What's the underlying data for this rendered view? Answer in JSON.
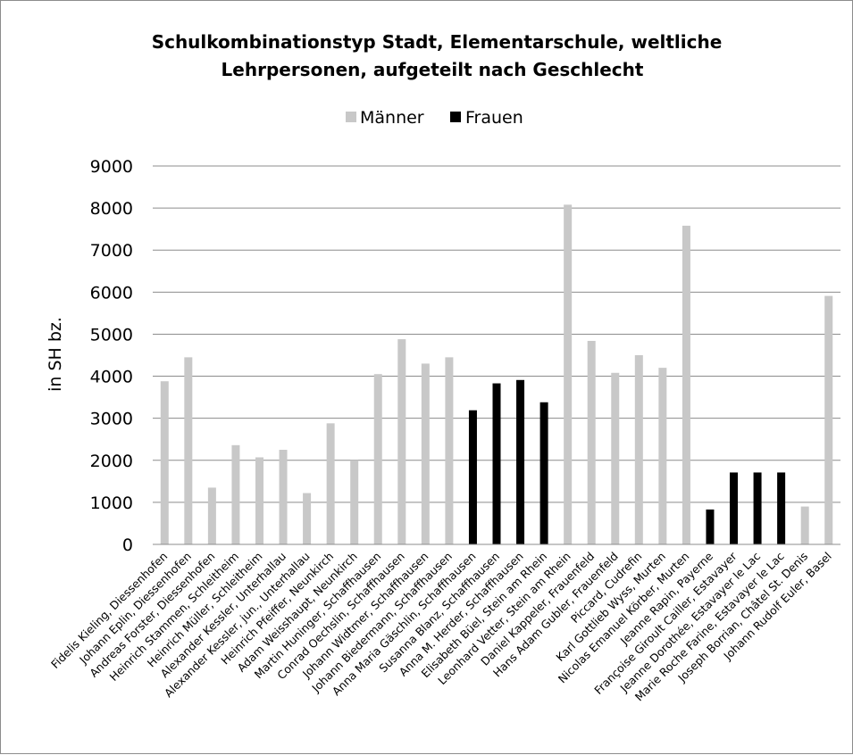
{
  "chart_data": {
    "type": "bar",
    "title_line1": "Schulkombinationstyp Stadt, Elementarschule, weltliche",
    "title_line2": "Lehrpersonen, aufgeteilt nach Geschlecht",
    "ylabel": "in SH bz.",
    "xlabel": "",
    "ylim": [
      0,
      9000
    ],
    "yticks": [
      "0",
      "1000",
      "2000",
      "3000",
      "4000",
      "5000",
      "6000",
      "7000",
      "8000",
      "9000"
    ],
    "grid": true,
    "legend_position": "top",
    "colors": {
      "Männer": "#c8c8c8",
      "Frauen": "#000000"
    },
    "legend": [
      "Männer",
      "Frauen"
    ],
    "categories": [
      "Fidelis Kieling, Diessenhofen",
      "Johann Eplin, Diessenhofen",
      "Andreas Forster, Diessenhofen",
      "Heinrich Stammen, Schleitheim",
      "Heinrich Müller, Schleitheim",
      "Alexander Kessler, Unterhallau",
      "Alexander Kessler, jun., Unterhallau",
      "Heinrich Pfeiffer, Neunkirch",
      "Adam Weisshaupt, Neunkirch",
      "Martin Huninger, Schaffhausen",
      "Conrad Oechslin, Schaffhausen",
      "Johann Widtmer, Schaffhausen",
      "Johann Biedermann, Schaffhausen",
      "Anna Maria Gäschlin, Schaffhausen",
      "Susanna Blanz, Schaffhausen",
      "Anna M. Herder, Schaffhausen",
      "Elisabeth Büel, Stein am Rhein",
      "Leonhard Vetter, Stein am Rhein",
      "Daniel Kappeler, Frauenfeld",
      "Hans Adam Gubler, Frauenfeld",
      "Piccard, Cudrefin",
      "Karl Gottlieb Wyss, Murten",
      "Nicolas Emanuel Körber, Murten",
      "Jeanne Rapin, Payerne",
      "Françoise Giroult Cailler, Estavayer",
      "Jeanne Dorothée, Estavayer le Lac",
      "Marie Roche Farine, Estavayer le Lac",
      "Joseph Borrian, Châtel St. Denis",
      "Johann Rudolf Euler, Basel"
    ],
    "series": [
      {
        "name": "Männer",
        "values": [
          3880,
          4450,
          1350,
          2360,
          2070,
          2250,
          1220,
          2880,
          2000,
          4050,
          4880,
          4300,
          4450,
          null,
          null,
          null,
          null,
          8080,
          4840,
          4080,
          4500,
          4200,
          7580,
          null,
          null,
          null,
          null,
          900,
          5910
        ]
      },
      {
        "name": "Frauen",
        "values": [
          null,
          null,
          null,
          null,
          null,
          null,
          null,
          null,
          null,
          null,
          null,
          null,
          null,
          3190,
          3830,
          3910,
          3380,
          null,
          null,
          null,
          null,
          null,
          null,
          830,
          1710,
          1710,
          1710,
          null,
          null
        ]
      }
    ]
  }
}
